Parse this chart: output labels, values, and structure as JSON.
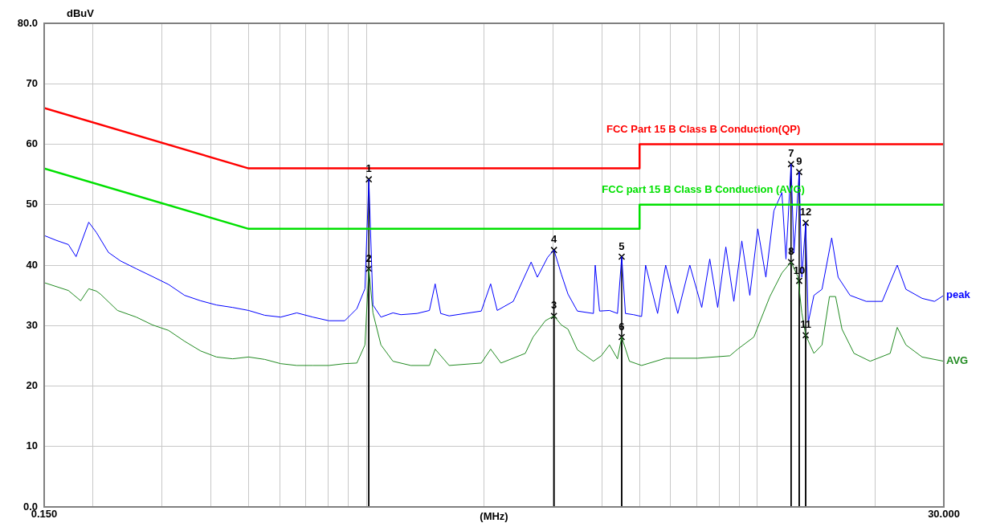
{
  "chart_data": {
    "type": "line",
    "xlabel": "(MHz)",
    "ylabel": "dBuV",
    "log": "x",
    "grid": true,
    "legend": false,
    "line_style": "solid",
    "xlim": [
      0.15,
      30
    ],
    "ylim": [
      0,
      80
    ],
    "xticks": [
      {
        "value": 0.15,
        "label": "0.150"
      },
      {
        "value": 0.2,
        "label": null
      },
      {
        "value": 0.3,
        "label": null
      },
      {
        "value": 0.4,
        "label": null
      },
      {
        "value": 0.5,
        "label": null
      },
      {
        "value": 0.6,
        "label": null
      },
      {
        "value": 0.7,
        "label": null
      },
      {
        "value": 0.8,
        "label": null
      },
      {
        "value": 0.9,
        "label": null
      },
      {
        "value": 1,
        "label": null
      },
      {
        "value": 2,
        "label": null
      },
      {
        "value": 3,
        "label": null
      },
      {
        "value": 4,
        "label": null
      },
      {
        "value": 5,
        "label": null
      },
      {
        "value": 6,
        "label": null
      },
      {
        "value": 7,
        "label": null
      },
      {
        "value": 8,
        "label": null
      },
      {
        "value": 9,
        "label": null
      },
      {
        "value": 10,
        "label": null
      },
      {
        "value": 20,
        "label": null
      },
      {
        "value": 30,
        "label": "30.000"
      }
    ],
    "yticks": [
      {
        "value": 0,
        "label": "0.0"
      },
      10,
      20,
      30,
      40,
      50,
      60,
      70,
      {
        "value": 80,
        "label": "80.0"
      }
    ],
    "series": [
      {
        "name": "FCC Part 15 B Class B Conduction(QP)",
        "color": "#ff0000",
        "marker": "none",
        "x": [
          0.15,
          0.5,
          5,
          5,
          30
        ],
        "values": [
          66,
          56,
          56,
          60,
          60
        ]
      },
      {
        "name": "FCC part 15 B Class B Conduction (AVG)",
        "color": "#00e000",
        "marker": "none",
        "x": [
          0.15,
          0.5,
          5,
          5,
          30
        ],
        "values": [
          56,
          46,
          46,
          50,
          50
        ]
      },
      {
        "name": "peak",
        "color": "#0000ff",
        "marker": "none",
        "x": [
          0.15,
          0.161,
          0.173,
          0.181,
          0.195,
          0.204,
          0.219,
          0.235,
          0.258,
          0.284,
          0.312,
          0.343,
          0.377,
          0.414,
          0.455,
          0.5,
          0.55,
          0.604,
          0.664,
          0.73,
          0.802,
          0.881,
          0.946,
          0.992,
          1.015,
          1.04,
          1.09,
          1.17,
          1.226,
          1.348,
          1.45,
          1.5,
          1.55,
          1.629,
          1.79,
          1.968,
          2.08,
          2.162,
          2.376,
          2.64,
          2.738,
          2.91,
          3.02,
          3.154,
          3.28,
          3.466,
          3.81,
          3.85,
          3.95,
          4.188,
          4.39,
          4.5,
          4.6,
          4.826,
          5.06,
          5.18,
          5.56,
          5.83,
          6.26,
          6.72,
          7.21,
          7.56,
          7.92,
          8.31,
          8.71,
          9.13,
          9.57,
          10.03,
          10.52,
          11.03,
          11.56,
          11.84,
          12.2,
          12.41,
          12.8,
          13.0,
          13.3,
          13.5,
          13.96,
          14.64,
          15.5,
          16.1,
          17.27,
          18.99,
          20.87,
          22.8,
          24.0,
          26.4,
          28.4,
          30
        ],
        "values": [
          44.9,
          44.1,
          43.4,
          41.4,
          47.1,
          45.4,
          42.1,
          40.7,
          39.4,
          38.1,
          36.8,
          35.0,
          34.1,
          33.4,
          33.0,
          32.5,
          31.7,
          31.4,
          32.1,
          31.4,
          30.8,
          30.8,
          32.8,
          36.1,
          54.2,
          33.4,
          31.4,
          32.1,
          31.8,
          32.0,
          32.5,
          36.9,
          32.0,
          31.6,
          32.0,
          32.4,
          36.9,
          32.5,
          34.0,
          40.5,
          38.0,
          41.3,
          42.5,
          38.5,
          35.2,
          32.4,
          32.0,
          40.0,
          32.4,
          32.5,
          32.0,
          41.4,
          32.0,
          31.8,
          31.5,
          40.0,
          32.0,
          40.0,
          32.0,
          40.0,
          33.0,
          41.0,
          33.0,
          43.0,
          34.0,
          44.0,
          35.0,
          46.0,
          38.0,
          49.0,
          52.0,
          41.0,
          56.7,
          42.0,
          55.4,
          38.0,
          47.0,
          30.5,
          35.0,
          36.0,
          44.5,
          38.0,
          35.0,
          34.0,
          34.0,
          40.0,
          36.0,
          34.5,
          34.0,
          35.0
        ]
      },
      {
        "name": "AVG",
        "color": "#228b22",
        "marker": "none",
        "x": [
          0.15,
          0.173,
          0.186,
          0.195,
          0.204,
          0.209,
          0.231,
          0.258,
          0.284,
          0.312,
          0.343,
          0.377,
          0.414,
          0.455,
          0.5,
          0.55,
          0.604,
          0.664,
          0.73,
          0.802,
          0.881,
          0.946,
          0.992,
          1.015,
          1.04,
          1.09,
          1.17,
          1.3,
          1.45,
          1.5,
          1.629,
          1.968,
          2.08,
          2.21,
          2.55,
          2.67,
          2.87,
          3.02,
          3.154,
          3.28,
          3.466,
          3.81,
          3.99,
          4.188,
          4.39,
          4.5,
          4.71,
          5.06,
          5.83,
          7.04,
          8.51,
          8.91,
          9.8,
          10.77,
          11.56,
          12.2,
          12.7,
          13.0,
          13.3,
          13.96,
          14.64,
          15.3,
          15.86,
          16.47,
          17.68,
          19.44,
          21.87,
          22.8,
          24.0,
          26.4,
          30
        ],
        "values": [
          37.1,
          35.8,
          34.1,
          36.1,
          35.7,
          35.2,
          32.5,
          31.4,
          30.1,
          29.2,
          27.4,
          25.8,
          24.8,
          24.5,
          24.8,
          24.4,
          23.7,
          23.4,
          23.4,
          23.4,
          23.7,
          23.8,
          26.8,
          39.4,
          32.1,
          26.8,
          24.1,
          23.4,
          23.4,
          26.1,
          23.4,
          23.8,
          26.1,
          23.8,
          25.4,
          28.1,
          30.8,
          31.6,
          30.1,
          29.4,
          26.0,
          24.1,
          25.0,
          26.8,
          24.5,
          28.1,
          24.1,
          23.4,
          24.6,
          24.6,
          25.0,
          26.1,
          28.1,
          34.8,
          38.7,
          40.5,
          38.1,
          32.1,
          28.4,
          25.4,
          26.8,
          34.8,
          34.8,
          29.4,
          25.4,
          24.1,
          25.4,
          29.7,
          26.8,
          24.8,
          24.1
        ]
      },
      {
        "type": "lollipop",
        "color": "#000000",
        "marker": "cross",
        "x": [
          1.015,
          1.015,
          3.02,
          3.02,
          4.5,
          4.5,
          12.2,
          12.2,
          12.8,
          12.8,
          13.3,
          13.3
        ],
        "values": [
          54.2,
          39.4,
          31.6,
          42.5,
          41.4,
          28.1,
          56.7,
          40.5,
          55.4,
          37.4,
          28.4,
          47.0
        ]
      }
    ],
    "annotations": [
      {
        "text": "1",
        "x": 1.015,
        "y": 54.2
      },
      {
        "text": "2",
        "x": 1.015,
        "y": 39.4
      },
      {
        "text": "3",
        "x": 3.02,
        "y": 31.6
      },
      {
        "text": "4",
        "x": 3.02,
        "y": 42.5
      },
      {
        "text": "5",
        "x": 4.5,
        "y": 41.4
      },
      {
        "text": "6",
        "x": 4.5,
        "y": 28.1
      },
      {
        "text": "7",
        "x": 12.2,
        "y": 56.7
      },
      {
        "text": "8",
        "x": 12.2,
        "y": 40.5
      },
      {
        "text": "9",
        "x": 12.8,
        "y": 55.4
      },
      {
        "text": "10",
        "x": 12.8,
        "y": 37.4
      },
      {
        "text": "11",
        "x": 13.3,
        "y": 28.4
      },
      {
        "text": "12",
        "x": 13.3,
        "y": 47.0
      }
    ]
  }
}
